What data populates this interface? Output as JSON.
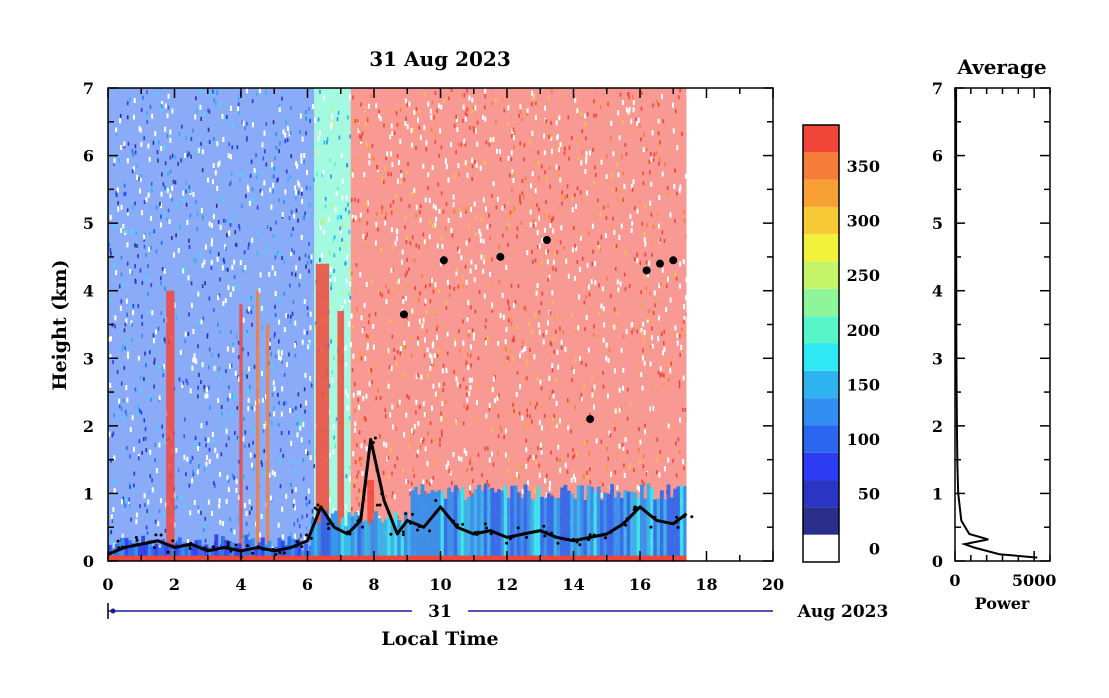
{
  "chart_data": [
    {
      "type": "heatmap",
      "title": "31 Aug 2023",
      "xlabel": "Local Time",
      "ylabel": "Height (km)",
      "xlim": [
        0,
        20
      ],
      "ylim": [
        0,
        7
      ],
      "x_ticks": [
        "0",
        "2",
        "4",
        "6",
        "8",
        "10",
        "12",
        "14",
        "16",
        "18",
        "20"
      ],
      "y_ticks": [
        "0",
        "1",
        "2",
        "3",
        "4",
        "5",
        "6",
        "7"
      ],
      "date_axis": {
        "day_label": "31",
        "month_label": "Aug 2023"
      },
      "data_end_hour": 17.4,
      "colorbar": {
        "levels": [
          0,
          25,
          50,
          75,
          100,
          125,
          150,
          175,
          200,
          225,
          250,
          275,
          300,
          325,
          350,
          375
        ],
        "tick_labels": [
          "0",
          "50",
          "100",
          "150",
          "200",
          "250",
          "300",
          "350"
        ],
        "colors": [
          "#2b2f8c",
          "#2a35c4",
          "#2b3cf2",
          "#2a66f0",
          "#2f8ef0",
          "#2fb3f0",
          "#2ee8f4",
          "#57f5c8",
          "#8ff59a",
          "#c4f46a",
          "#f2f23c",
          "#f7c935",
          "#f7a033",
          "#f57d38",
          "#f2453a"
        ]
      },
      "regime": [
        {
          "from": 0,
          "to": 6.2,
          "level": 90
        },
        {
          "from": 6.2,
          "to": 7.3,
          "level": 175
        },
        {
          "from": 7.3,
          "to": 17.4,
          "level": 360
        }
      ],
      "columns": [
        {
          "from": 1.75,
          "to": 2.0,
          "top": 4.0,
          "level": 360
        },
        {
          "from": 3.95,
          "to": 4.05,
          "top": 3.8,
          "level": 360
        },
        {
          "from": 4.45,
          "to": 4.55,
          "top": 4.0,
          "level": 330
        },
        {
          "from": 4.75,
          "to": 4.85,
          "top": 3.5,
          "level": 330
        },
        {
          "from": 6.25,
          "to": 6.65,
          "top": 4.4,
          "level": 360
        },
        {
          "from": 6.9,
          "to": 7.1,
          "top": 3.7,
          "level": 360
        },
        {
          "from": 7.8,
          "to": 8.0,
          "top": 1.2,
          "level": 360
        }
      ],
      "black_trace": [
        [
          0,
          0.1
        ],
        [
          0.5,
          0.2
        ],
        [
          1.0,
          0.25
        ],
        [
          1.5,
          0.3
        ],
        [
          2.0,
          0.2
        ],
        [
          2.5,
          0.25
        ],
        [
          3.0,
          0.15
        ],
        [
          3.5,
          0.2
        ],
        [
          4.0,
          0.15
        ],
        [
          4.5,
          0.2
        ],
        [
          5.0,
          0.15
        ],
        [
          5.5,
          0.2
        ],
        [
          6.0,
          0.3
        ],
        [
          6.4,
          0.8
        ],
        [
          6.8,
          0.5
        ],
        [
          7.2,
          0.4
        ],
        [
          7.6,
          0.6
        ],
        [
          7.9,
          1.8
        ],
        [
          8.3,
          0.9
        ],
        [
          8.7,
          0.4
        ],
        [
          9.0,
          0.6
        ],
        [
          9.5,
          0.5
        ],
        [
          10.0,
          0.8
        ],
        [
          10.5,
          0.5
        ],
        [
          11.0,
          0.4
        ],
        [
          11.5,
          0.45
        ],
        [
          12.0,
          0.35
        ],
        [
          12.5,
          0.4
        ],
        [
          13.0,
          0.45
        ],
        [
          13.5,
          0.35
        ],
        [
          14.0,
          0.3
        ],
        [
          14.5,
          0.35
        ],
        [
          15.0,
          0.4
        ],
        [
          15.5,
          0.55
        ],
        [
          16.0,
          0.8
        ],
        [
          16.5,
          0.6
        ],
        [
          17.0,
          0.55
        ],
        [
          17.4,
          0.7
        ]
      ],
      "black_blobs": [
        [
          8.9,
          3.65
        ],
        [
          10.1,
          4.45
        ],
        [
          11.8,
          4.5
        ],
        [
          13.2,
          4.75
        ],
        [
          14.5,
          2.1
        ],
        [
          16.2,
          4.3
        ],
        [
          16.6,
          4.4
        ],
        [
          17.0,
          4.45
        ]
      ]
    },
    {
      "type": "line",
      "title": "Average",
      "xlabel": "Power",
      "ylabel": "",
      "xlim": [
        0,
        6000
      ],
      "ylim": [
        0,
        7
      ],
      "x_ticks": [
        "0",
        "5000"
      ],
      "y_ticks": [
        "0",
        "1",
        "2",
        "3",
        "4",
        "5",
        "6",
        "7"
      ],
      "series": [
        {
          "x": [
            5200,
            2800,
            1200,
            600,
            2100,
            900,
            400,
            200,
            150,
            120,
            100,
            90,
            80,
            80,
            75,
            70,
            70,
            70
          ],
          "y": [
            0.05,
            0.1,
            0.2,
            0.25,
            0.32,
            0.4,
            0.6,
            1.0,
            1.4,
            2.0,
            2.5,
            3.0,
            3.6,
            4.0,
            4.5,
            5.5,
            6.5,
            7.0
          ]
        }
      ]
    }
  ]
}
